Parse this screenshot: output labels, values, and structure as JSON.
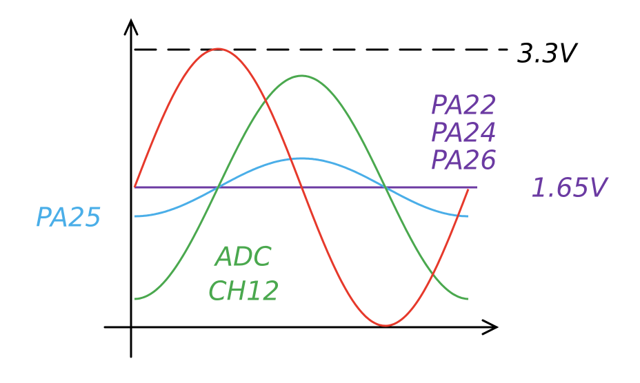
{
  "labels": {
    "vmax": "3.3V",
    "pins": [
      "PA22",
      "PA24",
      "PA26"
    ],
    "vmid": "1.65V",
    "pa25": "PA25",
    "adc": [
      "ADC",
      "CH12"
    ]
  }
}
